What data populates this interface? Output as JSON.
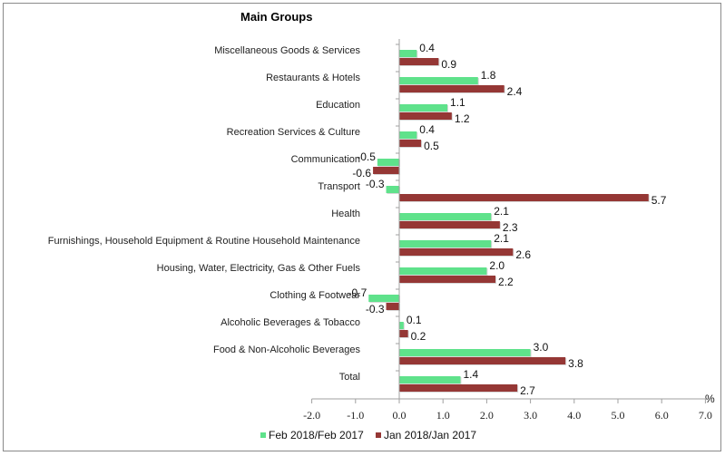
{
  "chart_data": {
    "type": "bar",
    "orientation": "horizontal",
    "title": "Main Groups",
    "xlabel": "%",
    "ylabel": "",
    "xlim": [
      -2.0,
      7.0
    ],
    "xticks": [
      "-2.0",
      "-1.0",
      "0.0",
      "1.0",
      "2.0",
      "3.0",
      "4.0",
      "5.0",
      "6.0",
      "7.0"
    ],
    "grid": false,
    "legend_position": "bottom",
    "categories": [
      "Miscellaneous Goods & Services",
      "Restaurants & Hotels",
      "Education",
      "Recreation Services & Culture",
      "Communication",
      "Transport",
      "Health",
      "Furnishings, Household Equipment & Routine Household Maintenance",
      "Housing, Water, Electricity, Gas & Other Fuels",
      "Clothing & Footwear",
      "Alcoholic Beverages & Tobacco",
      "Food & Non-Alcoholic Beverages",
      "Total"
    ],
    "series": [
      {
        "name": "Feb 2018/Feb 2017",
        "color": "#5fe28b",
        "values": [
          0.4,
          1.8,
          1.1,
          0.4,
          -0.5,
          -0.3,
          2.1,
          2.1,
          2.0,
          -0.7,
          0.1,
          3.0,
          1.4
        ],
        "labels": [
          "0.4",
          "1.8",
          "1.1",
          "0.4",
          "-0.5",
          "-0.3",
          "2.1",
          "2.1",
          "2.0",
          "-0.7",
          "0.1",
          "3.0",
          "1.4"
        ]
      },
      {
        "name": "Jan 2018/Jan 2017",
        "color": "#953735",
        "values": [
          0.9,
          2.4,
          1.2,
          0.5,
          -0.6,
          5.7,
          2.3,
          2.6,
          2.2,
          -0.3,
          0.2,
          3.8,
          2.7
        ],
        "labels": [
          "0.9",
          "2.4",
          "1.2",
          "0.5",
          "-0.6",
          "5.7",
          "2.3",
          "2.6",
          "2.2",
          "-0.3",
          "0.2",
          "3.8",
          "2.7"
        ]
      }
    ]
  }
}
